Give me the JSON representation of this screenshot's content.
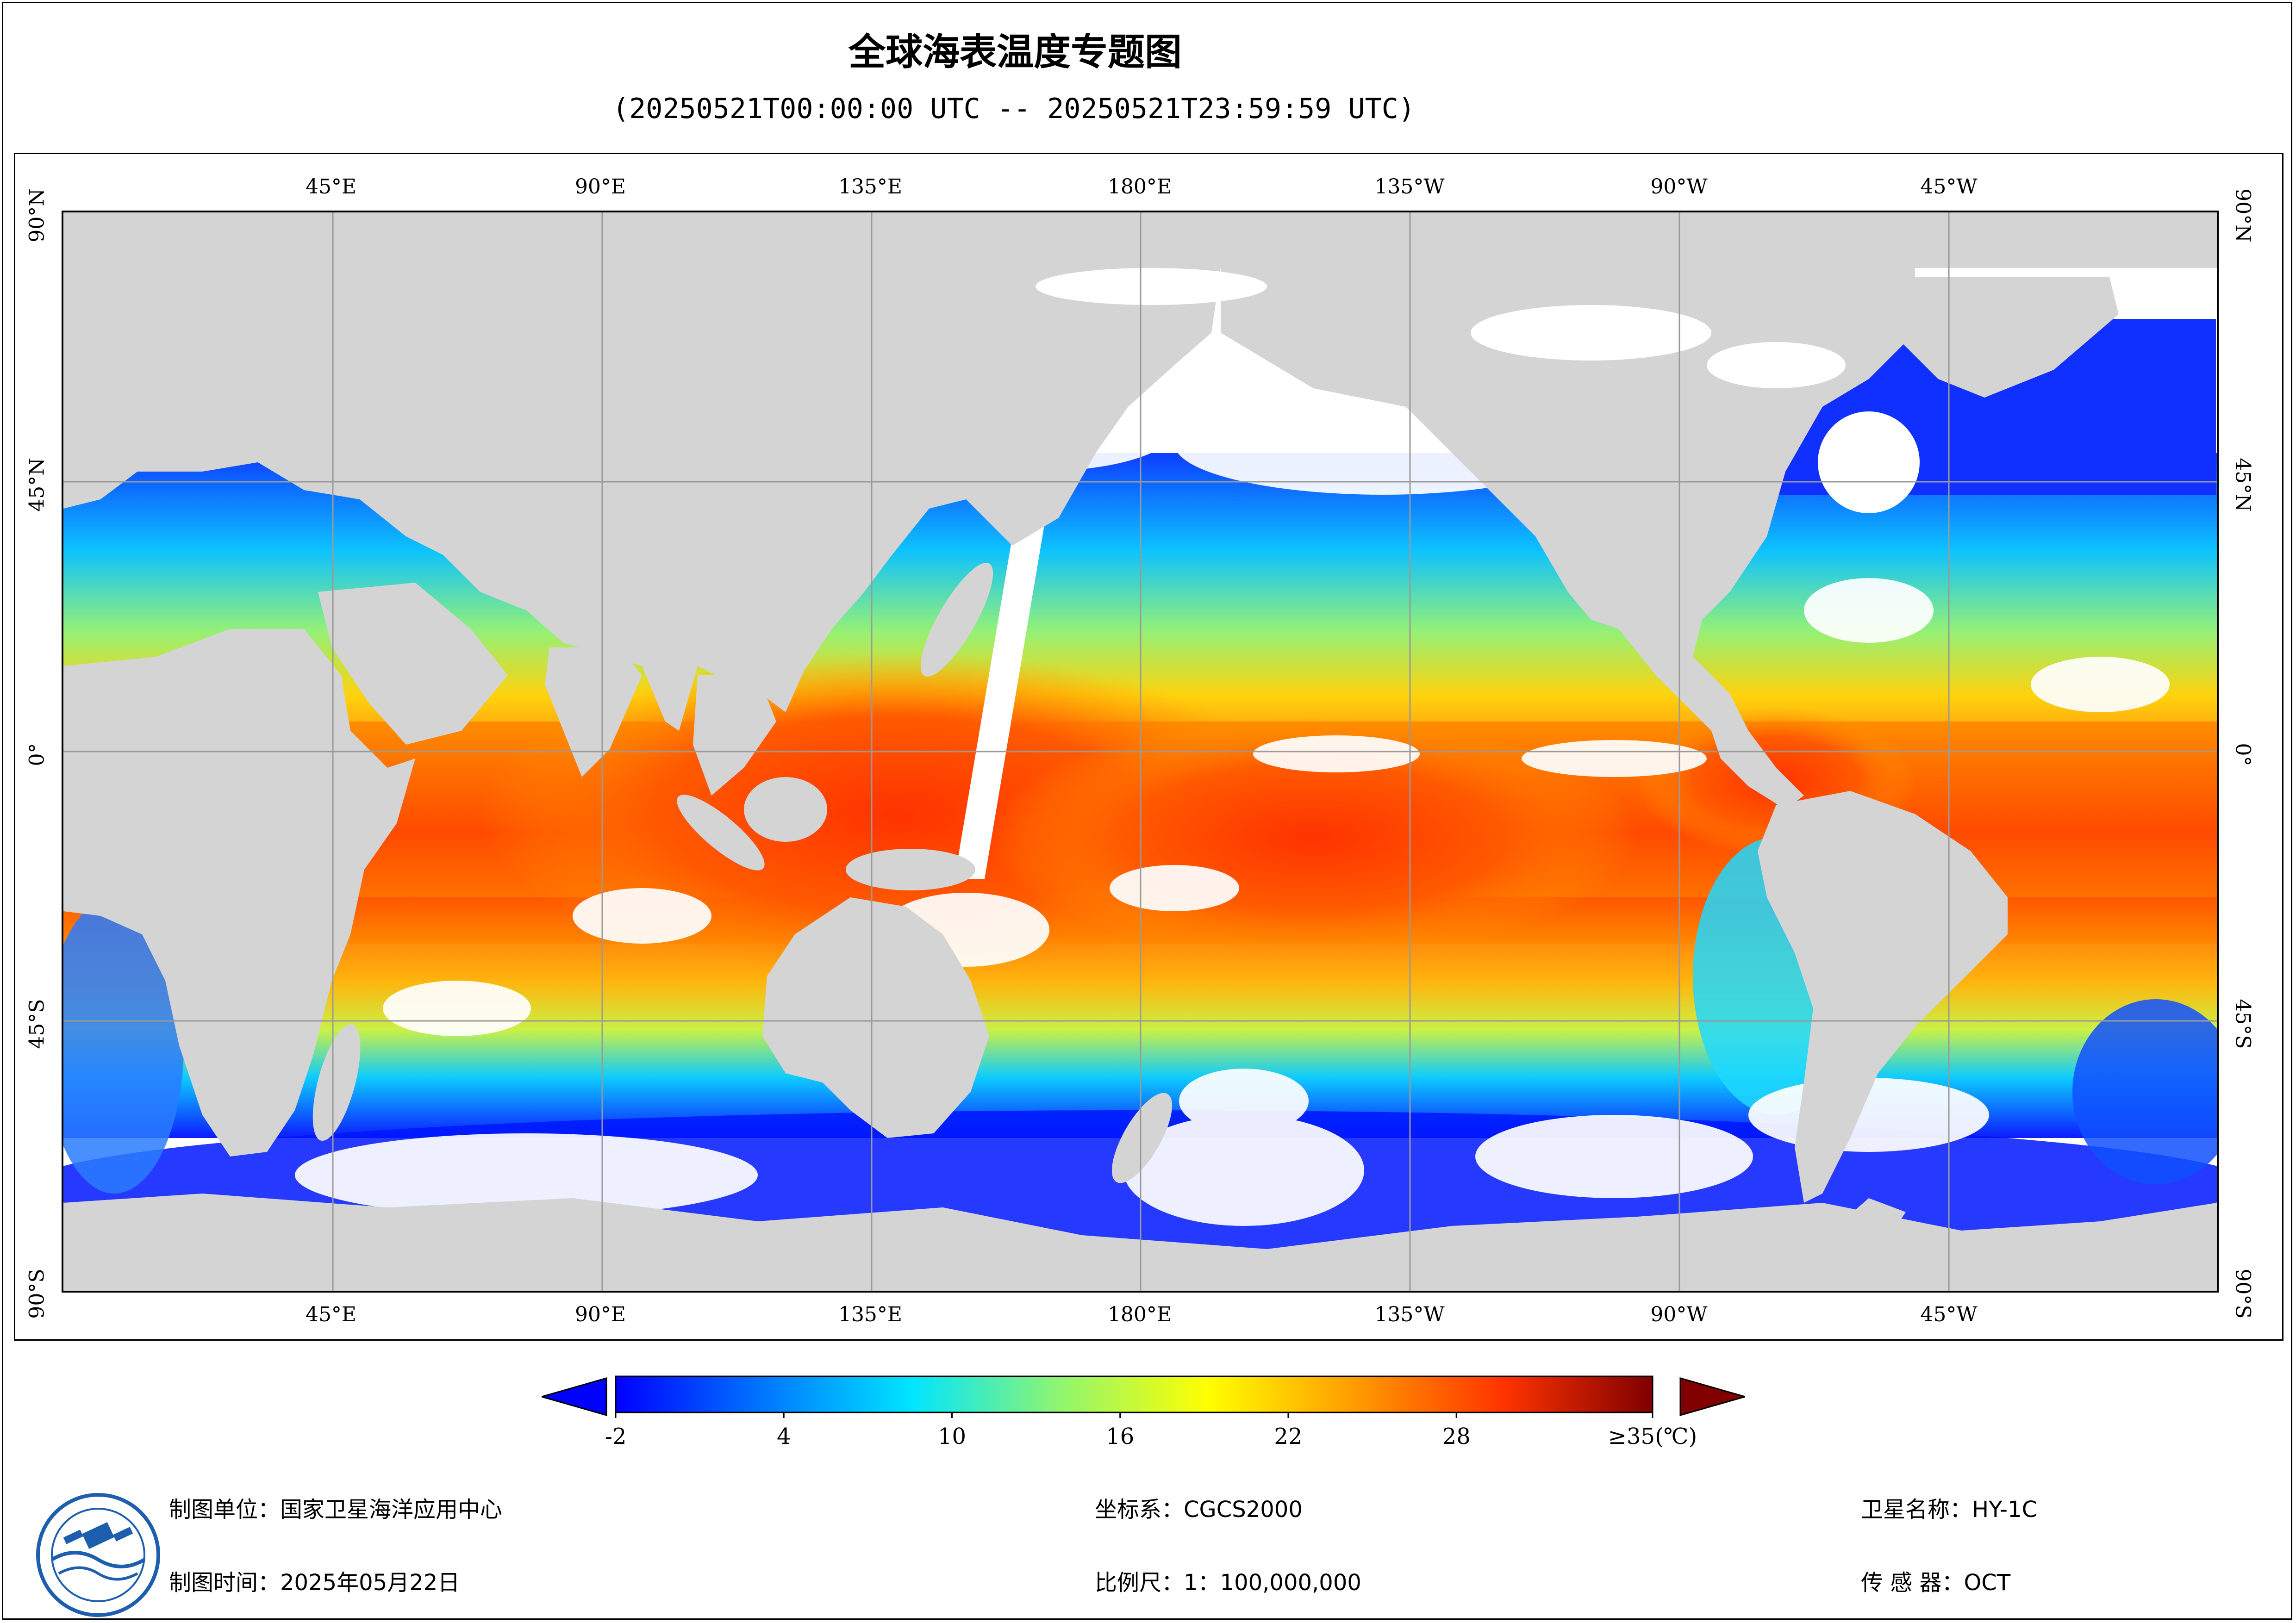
{
  "title": "全球海表温度专题图",
  "subtitle": "(20250521T00:00:00 UTC -- 20250521T23:59:59 UTC)",
  "map": {
    "lon_labels": [
      "45°E",
      "90°E",
      "135°E",
      "180°E",
      "135°W",
      "90°W",
      "45°W"
    ],
    "lat_labels": [
      "90°N",
      "45°N",
      "0°",
      "45°S",
      "90°S"
    ],
    "colors": {
      "land": "#d4d4d4",
      "cloud": "#ffffff",
      "grid": "#9a9a9a"
    }
  },
  "colorbar": {
    "labels": [
      "-2",
      "4",
      "10",
      "16",
      "22",
      "28",
      "≥35(℃)"
    ],
    "values": [
      -2,
      4,
      10,
      16,
      22,
      28,
      35
    ],
    "range": [
      -2,
      35
    ],
    "stops": [
      "#0000ff",
      "#0077ff",
      "#00e5ff",
      "#90f56f",
      "#ffff00",
      "#ff9a00",
      "#ff3300",
      "#7f0000"
    ],
    "under_color": "#0000ff",
    "over_color": "#800000"
  },
  "footer": {
    "org": "制图单位：国家卫星海洋应用中心",
    "date": "制图时间：2025年05月22日",
    "crs": "坐标系：CGCS2000",
    "scale": "比例尺：1：100,000,000",
    "satellite": "卫星名称：HY-1C",
    "sensor": "传 感 器：OCT",
    "logo": "nsoas-logo-icon"
  }
}
